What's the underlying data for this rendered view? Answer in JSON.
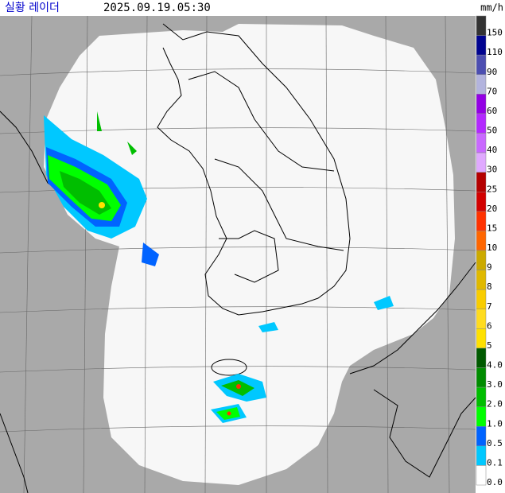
{
  "header": {
    "title": "실황 레이더",
    "time": "2025.09.19.05:30",
    "unit": "mm/h"
  },
  "legend": {
    "items": [
      {
        "label": "150",
        "color": "#333333"
      },
      {
        "label": "110",
        "color": "#000390"
      },
      {
        "label": "90",
        "color": "#4c4eb1"
      },
      {
        "label": "70",
        "color": "#b3b4de"
      },
      {
        "label": "60",
        "color": "#9300e4"
      },
      {
        "label": "50",
        "color": "#b329ff"
      },
      {
        "label": "40",
        "color": "#c969ff"
      },
      {
        "label": "30",
        "color": "#e0a9ff"
      },
      {
        "label": "25",
        "color": "#b40000"
      },
      {
        "label": "20",
        "color": "#d20000"
      },
      {
        "label": "15",
        "color": "#ff3200"
      },
      {
        "label": "10",
        "color": "#ff6600"
      },
      {
        "label": "9",
        "color": "#ccaa00"
      },
      {
        "label": "8",
        "color": "#e0b900"
      },
      {
        "label": "7",
        "color": "#f9cd00"
      },
      {
        "label": "6",
        "color": "#ffdc1f"
      },
      {
        "label": "5",
        "color": "#ffe100"
      },
      {
        "label": "4.0",
        "color": "#005a00"
      },
      {
        "label": "3.0",
        "color": "#008c00"
      },
      {
        "label": "2.0",
        "color": "#00be00"
      },
      {
        "label": "1.0",
        "color": "#00ff00"
      },
      {
        "label": "0.5",
        "color": "#0063ff"
      },
      {
        "label": "0.1",
        "color": "#00c8ff"
      },
      {
        "label": "0.0",
        "color": "#ffffff"
      }
    ]
  }
}
